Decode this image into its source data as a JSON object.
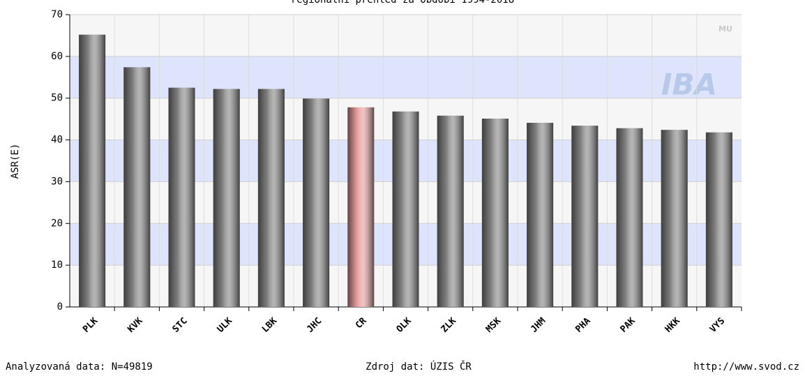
{
  "chart_data": {
    "type": "bar",
    "title": "regionální přehled za období 1994-2018",
    "y_label": "ASR(E)",
    "categories": [
      "PLK",
      "KVK",
      "STC",
      "ULK",
      "LBK",
      "JHC",
      "CR",
      "OLK",
      "ZLK",
      "MSK",
      "JHM",
      "PHA",
      "PAK",
      "HKK",
      "VYS"
    ],
    "values": [
      65.2,
      57.4,
      52.5,
      52.2,
      52.2,
      49.9,
      47.8,
      46.8,
      45.8,
      45.1,
      44.1,
      43.4,
      42.8,
      42.4,
      41.8
    ],
    "colors": [
      "#808080",
      "#808080",
      "#808080",
      "#808080",
      "#808080",
      "#808080",
      "#e89a9a",
      "#808080",
      "#808080",
      "#808080",
      "#808080",
      "#808080",
      "#808080",
      "#808080",
      "#808080"
    ],
    "ylim": [
      0,
      70
    ],
    "yticks": [
      0,
      10,
      20,
      30,
      40,
      50,
      60,
      70
    ],
    "grid": true,
    "watermark": [
      "MU",
      "IBA"
    ],
    "footer": {
      "left": "Analyzovaná data: N=49819",
      "center": "Zdroj dat: ÚZIS ČR",
      "right": "http://www.svod.cz"
    }
  }
}
